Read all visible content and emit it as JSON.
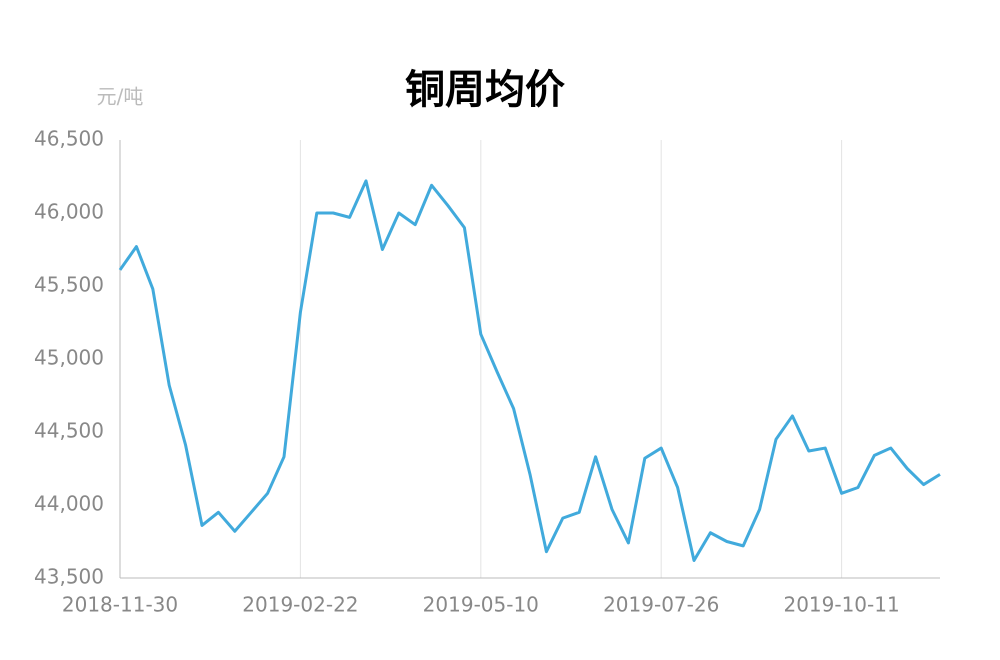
{
  "chart_data": {
    "type": "line",
    "title": "铜周均价",
    "y_unit": "元/吨",
    "categories": [
      "2018-11-30",
      null,
      null,
      null,
      null,
      null,
      null,
      null,
      null,
      null,
      null,
      "2019-02-22",
      null,
      null,
      null,
      null,
      null,
      null,
      null,
      null,
      null,
      null,
      "2019-05-10",
      null,
      null,
      null,
      null,
      null,
      null,
      null,
      null,
      null,
      null,
      "2019-07-26",
      null,
      null,
      null,
      null,
      null,
      null,
      null,
      null,
      null,
      null,
      "2019-10-11",
      null,
      null,
      null,
      null,
      null,
      null
    ],
    "series": [
      {
        "name": "铜周均价",
        "color": "#41aadc",
        "values": [
          45610,
          45770,
          45480,
          44820,
          44410,
          43860,
          43950,
          43820,
          43950,
          44080,
          44330,
          45320,
          46000,
          46000,
          45970,
          46220,
          45750,
          46000,
          45920,
          46190,
          46050,
          45900,
          45170,
          44910,
          44660,
          44210,
          43680,
          43910,
          43950,
          44330,
          43970,
          43740,
          44320,
          44390,
          44120,
          43620,
          43810,
          43750,
          43720,
          43970,
          44450,
          44610,
          44370,
          44390,
          44080,
          44120,
          44340,
          44390,
          44250,
          44140,
          44210
        ]
      }
    ],
    "ylim": [
      43500,
      46500
    ],
    "yticks": [
      {
        "value": 43500,
        "label": "43,500"
      },
      {
        "value": 44000,
        "label": "44,000"
      },
      {
        "value": 44500,
        "label": "44,500"
      },
      {
        "value": 45000,
        "label": "45,000"
      },
      {
        "value": 45500,
        "label": "45,500"
      },
      {
        "value": 46000,
        "label": "46,000"
      },
      {
        "value": 46500,
        "label": "46,500"
      }
    ],
    "grid": true
  }
}
